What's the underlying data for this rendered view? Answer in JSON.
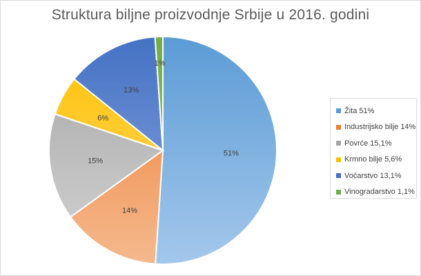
{
  "chart_data": {
    "type": "pie",
    "title": "Struktura biljne proizvodnje Srbije u 2016. godini",
    "slices": [
      {
        "label": "Žita 51%",
        "value": 51,
        "data_label": "51%",
        "color_light": "#a4c8ec",
        "color_dark": "#5b9bd5"
      },
      {
        "label": "Industrijsko bilje 14%",
        "value": 14,
        "data_label": "14%",
        "color_light": "#f5b98e",
        "color_dark": "#ed7d31"
      },
      {
        "label": "Povrće 15,1%",
        "value": 15.1,
        "data_label": "15%",
        "color_light": "#d4d4d4",
        "color_dark": "#a5a5a5"
      },
      {
        "label": "Krmno bilje 5,6%",
        "value": 5.6,
        "data_label": "6%",
        "color_light": "#ffda70",
        "color_dark": "#ffc000"
      },
      {
        "label": "Voćarstvo 13,1%",
        "value": 13.1,
        "data_label": "13%",
        "color_light": "#8ea8df",
        "color_dark": "#4472c4"
      },
      {
        "label": "Vinogradarstvo 1,1%",
        "value": 1.1,
        "data_label": "1%",
        "color_light": "#9fd27e",
        "color_dark": "#70ad47"
      }
    ],
    "legend_position": "right"
  }
}
